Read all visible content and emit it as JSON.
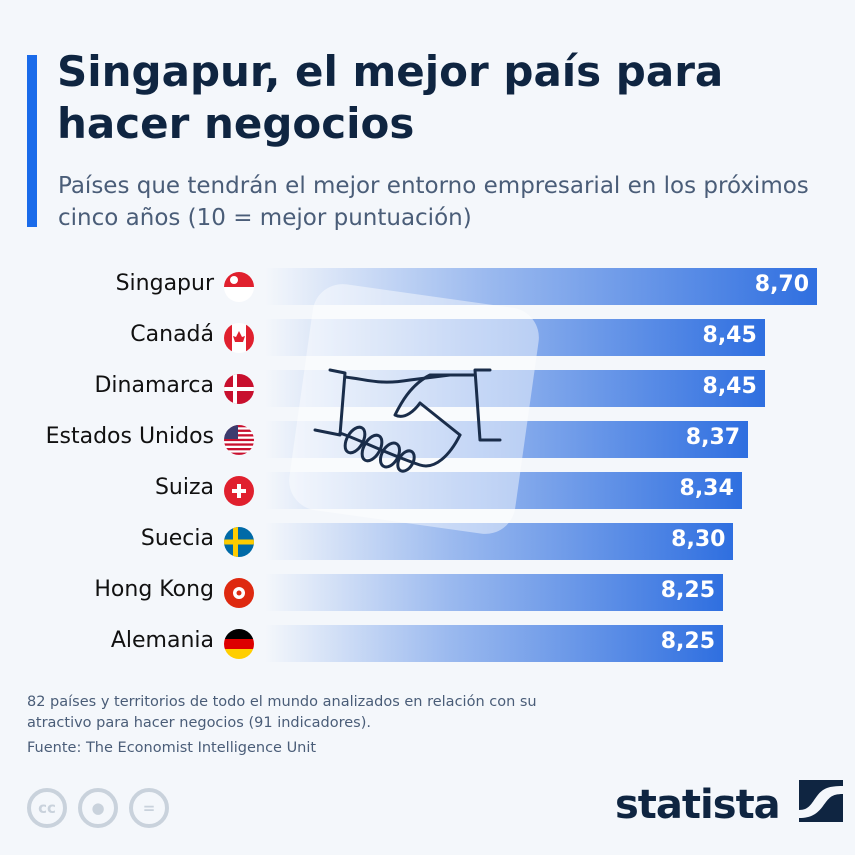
{
  "title": "Singapur, el mejor país para hacer negocios",
  "subtitle": "Países que tendrán el mejor entorno empresarial en los próximos cinco años (10 = mejor puntuación)",
  "chart_data": {
    "type": "bar",
    "orientation": "horizontal",
    "categories": [
      "Singapur",
      "Canadá",
      "Dinamarca",
      "Estados Unidos",
      "Suiza",
      "Suecia",
      "Hong Kong",
      "Alemania"
    ],
    "values": [
      8.7,
      8.45,
      8.45,
      8.37,
      8.34,
      8.3,
      8.25,
      8.25
    ],
    "value_labels": [
      "8,70",
      "8,45",
      "8,45",
      "8,37",
      "8,34",
      "8,30",
      "8,25",
      "8,25"
    ],
    "flags": [
      "singapore-flag",
      "canada-flag",
      "denmark-flag",
      "usa-flag",
      "switzerland-flag",
      "sweden-flag",
      "hongkong-flag",
      "germany-flag"
    ],
    "bar_color": "#2f6fe0",
    "title": "Singapur, el mejor país para hacer negocios"
  },
  "footer": {
    "note": "82 países y territorios de todo el mundo analizados en relación con su atractivo para hacer negocios (91 indicadores).",
    "source": "Fuente: The Economist Intelligence Unit",
    "cc": "cc",
    "eq": "=",
    "logo": "statista"
  },
  "colors": {
    "accent": "#1a6bea",
    "title": "#0f2541"
  }
}
